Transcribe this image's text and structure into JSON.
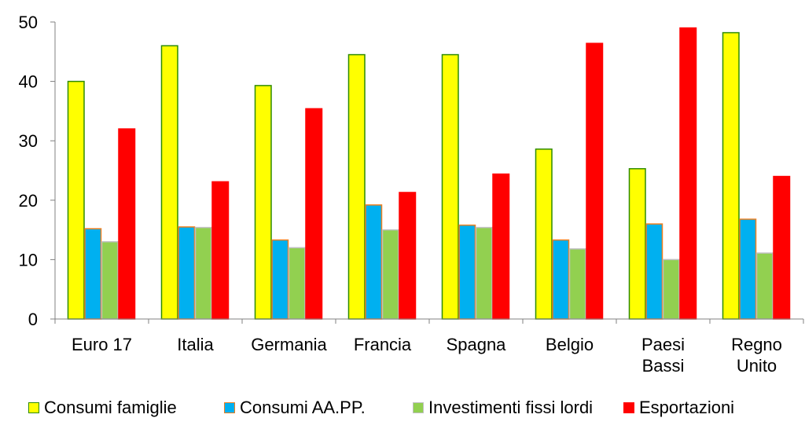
{
  "chart_data": {
    "type": "bar",
    "title": "",
    "xlabel": "",
    "ylabel": "",
    "ylim": [
      0,
      50
    ],
    "yticks": [
      0,
      10,
      20,
      30,
      40,
      50
    ],
    "grid": false,
    "legend_position": "bottom",
    "categories": [
      [
        "Euro 17"
      ],
      [
        "Italia"
      ],
      [
        "Germania"
      ],
      [
        "Francia"
      ],
      [
        "Spagna"
      ],
      [
        "Belgio"
      ],
      [
        "Paesi",
        "Bassi"
      ],
      [
        "Regno",
        "Unito"
      ]
    ],
    "series": [
      {
        "name": "Consumi famiglie",
        "color": "#ffff00",
        "border": "#2e8b00",
        "values": [
          40.0,
          46.0,
          39.3,
          44.5,
          44.5,
          28.6,
          25.3,
          48.2
        ]
      },
      {
        "name": "Consumi AA.PP.",
        "color": "#00b0f0",
        "border": "#f07f1f",
        "values": [
          15.2,
          15.5,
          13.3,
          19.2,
          15.8,
          13.3,
          16.0,
          16.8
        ]
      },
      {
        "name": "Investimenti fissi lordi",
        "color": "#92d050",
        "border": "#bfbfbf",
        "values": [
          13.0,
          15.4,
          12.0,
          15.0,
          15.4,
          11.8,
          10.0,
          11.1
        ]
      },
      {
        "name": "Esportazioni",
        "color": "#ff0000",
        "border": "#ff0000",
        "values": [
          32.0,
          23.1,
          35.4,
          21.3,
          24.4,
          46.4,
          49.0,
          24.0
        ]
      }
    ]
  }
}
